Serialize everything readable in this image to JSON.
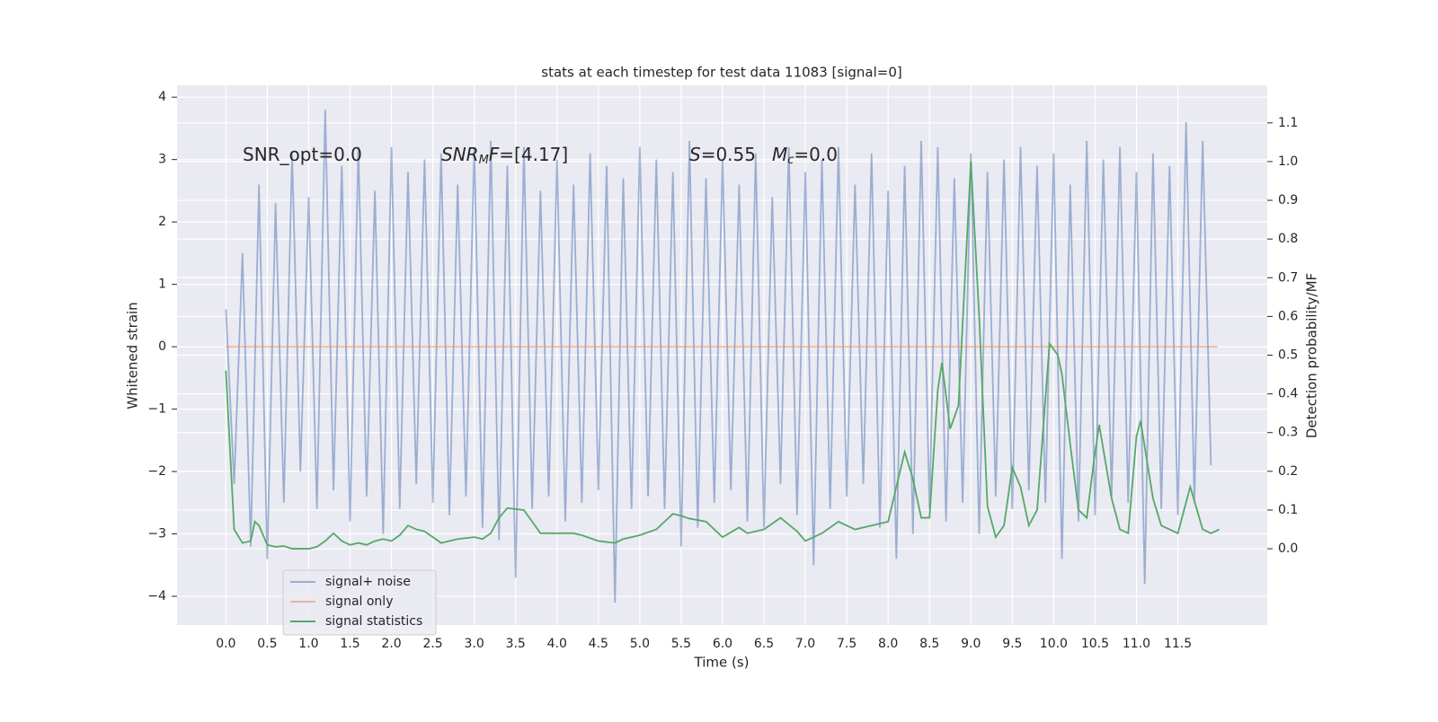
{
  "chart_data": {
    "type": "line",
    "title": "stats at each timestep for test data 11083 [signal=0]",
    "xlabel": "Time (s)",
    "ylabel": "Whitened strain",
    "y2label": "Detection probability/MF",
    "xlim": [
      -0.59,
      12.58
    ],
    "ylim": [
      -4.46,
      4.19
    ],
    "y2lim": [
      -0.197,
      1.197
    ],
    "xticks": [
      {
        "value": 0,
        "label": "0.0"
      },
      {
        "value": 0.5,
        "label": "0.5"
      },
      {
        "value": 1,
        "label": "1.0"
      },
      {
        "value": 1.5,
        "label": "1.5"
      },
      {
        "value": 2,
        "label": "2.0"
      },
      {
        "value": 2.5,
        "label": "2.5"
      },
      {
        "value": 3,
        "label": "3.0"
      },
      {
        "value": 3.5,
        "label": "3.5"
      },
      {
        "value": 4,
        "label": "4.0"
      },
      {
        "value": 4.5,
        "label": "4.5"
      },
      {
        "value": 5,
        "label": "5.0"
      },
      {
        "value": 5.5,
        "label": "5.5"
      },
      {
        "value": 6,
        "label": "6.0"
      },
      {
        "value": 6.5,
        "label": "6.5"
      },
      {
        "value": 7,
        "label": "7.0"
      },
      {
        "value": 7.5,
        "label": "7.5"
      },
      {
        "value": 8,
        "label": "8.0"
      },
      {
        "value": 8.5,
        "label": "8.5"
      },
      {
        "value": 9,
        "label": "9.0"
      },
      {
        "value": 9.5,
        "label": "9.5"
      },
      {
        "value": 10,
        "label": "10.0"
      },
      {
        "value": 10.5,
        "label": "10.5"
      },
      {
        "value": 11,
        "label": "11.0"
      },
      {
        "value": 11.5,
        "label": "11.5"
      }
    ],
    "yticks": [
      {
        "value": -4,
        "label": "−4"
      },
      {
        "value": -3,
        "label": "−3"
      },
      {
        "value": -2,
        "label": "−2"
      },
      {
        "value": -1,
        "label": "−1"
      },
      0,
      1,
      2,
      3,
      4
    ],
    "y2ticks": [
      {
        "value": 0,
        "label": "0.0"
      },
      {
        "value": 0.1,
        "label": "0.1"
      },
      {
        "value": 0.2,
        "label": "0.2"
      },
      {
        "value": 0.3,
        "label": "0.3"
      },
      {
        "value": 0.4,
        "label": "0.4"
      },
      {
        "value": 0.5,
        "label": "0.5"
      },
      {
        "value": 0.6,
        "label": "0.6"
      },
      {
        "value": 0.7,
        "label": "0.7"
      },
      {
        "value": 0.8,
        "label": "0.8"
      },
      {
        "value": 0.9,
        "label": "0.9"
      },
      {
        "value": 1,
        "label": "1.0"
      },
      {
        "value": 1.1,
        "label": "1.1"
      }
    ],
    "grid": true,
    "legend": "lower left",
    "annotations": [
      [
        {
          "text": "SNR_opt=0.0"
        }
      ],
      [
        {
          "text": "SNR",
          "style": "italic"
        },
        {
          "text": "M",
          "style": "sub"
        },
        {
          "text": "F",
          "style": "italic"
        },
        {
          "text": "=[4.17]"
        }
      ],
      [
        {
          "text": "S",
          "style": "italic"
        },
        {
          "text": "=0.55"
        }
      ],
      [
        {
          "text": "M",
          "style": "italic"
        },
        {
          "text": "c",
          "style": "sub"
        },
        {
          "text": "=0.0"
        }
      ]
    ],
    "series": [
      {
        "name": "signal+ noise",
        "color": "#4c72b0",
        "alpha": 0.5,
        "x": [
          0,
          0.1,
          0.2,
          0.3,
          0.4,
          0.5,
          0.6,
          0.7,
          0.8,
          0.9,
          1,
          1.1,
          1.2,
          1.3,
          1.4,
          1.5,
          1.6,
          1.7,
          1.8,
          1.9,
          2,
          2.1,
          2.2,
          2.3,
          2.4,
          2.5,
          2.6,
          2.7,
          2.8,
          2.9,
          3,
          3.1,
          3.2,
          3.3,
          3.4,
          3.5,
          3.6,
          3.7,
          3.8,
          3.9,
          4,
          4.1,
          4.2,
          4.3,
          4.4,
          4.5,
          4.6,
          4.7,
          4.8,
          4.9,
          5,
          5.1,
          5.2,
          5.3,
          5.4,
          5.5,
          5.6,
          5.7,
          5.8,
          5.9,
          6,
          6.1,
          6.2,
          6.3,
          6.4,
          6.5,
          6.6,
          6.7,
          6.8,
          6.9,
          7,
          7.1,
          7.2,
          7.3,
          7.4,
          7.5,
          7.6,
          7.7,
          7.8,
          7.9,
          8,
          8.1,
          8.2,
          8.3,
          8.4,
          8.5,
          8.6,
          8.7,
          8.8,
          8.9,
          9,
          9.1,
          9.2,
          9.3,
          9.4,
          9.5,
          9.6,
          9.7,
          9.8,
          9.9,
          10,
          10.1,
          10.2,
          10.3,
          10.4,
          10.5,
          10.6,
          10.7,
          10.8,
          10.9,
          11,
          11.1,
          11.2,
          11.3,
          11.4,
          11.5,
          11.6,
          11.7,
          11.8,
          11.9
        ],
        "values": [
          0.6,
          -2.2,
          1.5,
          -3.2,
          2.6,
          -3.4,
          2.3,
          -2.5,
          3.1,
          -2.0,
          2.4,
          -2.6,
          3.8,
          -2.3,
          2.9,
          -2.8,
          3.2,
          -2.4,
          2.5,
          -3.0,
          3.2,
          -2.6,
          2.8,
          -2.2,
          3.0,
          -2.5,
          3.1,
          -2.7,
          2.6,
          -2.4,
          3.2,
          -2.9,
          3.3,
          -3.1,
          2.9,
          -3.7,
          3.2,
          -2.6,
          2.5,
          -2.4,
          3.0,
          -2.8,
          2.6,
          -2.5,
          3.1,
          -2.3,
          2.9,
          -4.1,
          2.7,
          -2.6,
          3.2,
          -2.4,
          3.0,
          -2.6,
          2.8,
          -3.2,
          3.3,
          -2.9,
          2.7,
          -2.5,
          3.0,
          -2.3,
          2.6,
          -2.8,
          3.1,
          -2.9,
          2.4,
          -2.2,
          3.2,
          -2.7,
          2.8,
          -3.5,
          3.0,
          -2.6,
          3.2,
          -2.4,
          2.6,
          -2.2,
          3.1,
          -2.9,
          2.5,
          -3.4,
          2.9,
          -3.0,
          3.3,
          -2.6,
          3.2,
          -2.8,
          2.7,
          -2.5,
          3.1,
          -3.0,
          2.8,
          -2.4,
          3.0,
          -2.6,
          3.2,
          -2.3,
          2.9,
          -2.5,
          3.1,
          -3.4,
          2.6,
          -2.8,
          3.3,
          -2.7,
          3.0,
          -2.4,
          3.2,
          -2.5,
          2.8,
          -3.8,
          3.1,
          -2.6,
          2.9,
          -2.7,
          3.6,
          -2.5,
          3.3,
          -1.9
        ]
      },
      {
        "name": "signal only",
        "color": "#dd8452",
        "alpha": 0.5,
        "x": [
          0,
          11.98
        ],
        "values": [
          0,
          0
        ]
      },
      {
        "name": "signal statistics",
        "color": "#55a868",
        "axis": "y2",
        "x": [
          0,
          0.1,
          0.2,
          0.3,
          0.35,
          0.4,
          0.5,
          0.6,
          0.7,
          0.8,
          1,
          1.1,
          1.2,
          1.3,
          1.4,
          1.5,
          1.6,
          1.7,
          1.8,
          1.9,
          2,
          2.1,
          2.2,
          2.3,
          2.4,
          2.5,
          2.6,
          2.7,
          2.8,
          3,
          3.1,
          3.2,
          3.3,
          3.4,
          3.6,
          3.7,
          3.8,
          4,
          4.2,
          4.3,
          4.5,
          4.7,
          4.8,
          5,
          5.2,
          5.4,
          5.5,
          5.6,
          5.8,
          6,
          6.2,
          6.3,
          6.5,
          6.7,
          6.9,
          7,
          7.2,
          7.4,
          7.6,
          7.8,
          8,
          8.1,
          8.2,
          8.3,
          8.4,
          8.5,
          8.6,
          8.65,
          8.75,
          8.85,
          9,
          9.1,
          9.2,
          9.3,
          9.4,
          9.5,
          9.6,
          9.7,
          9.8,
          9.95,
          10.05,
          10.1,
          10.2,
          10.3,
          10.4,
          10.5,
          10.55,
          10.7,
          10.8,
          10.9,
          11,
          11.05,
          11.2,
          11.3,
          11.5,
          11.65,
          11.8,
          11.9,
          12
        ],
        "values": [
          0.46,
          0.05,
          0.015,
          0.02,
          0.07,
          0.06,
          0.01,
          0.005,
          0.007,
          0,
          0,
          0.005,
          0.02,
          0.04,
          0.02,
          0.01,
          0.015,
          0.01,
          0.02,
          0.025,
          0.02,
          0.035,
          0.06,
          0.05,
          0.045,
          0.03,
          0.015,
          0.02,
          0.025,
          0.03,
          0.025,
          0.04,
          0.08,
          0.105,
          0.1,
          0.07,
          0.04,
          0.04,
          0.04,
          0.035,
          0.02,
          0.015,
          0.025,
          0.035,
          0.05,
          0.09,
          0.085,
          0.078,
          0.07,
          0.03,
          0.055,
          0.04,
          0.05,
          0.08,
          0.045,
          0.02,
          0.04,
          0.07,
          0.05,
          0.06,
          0.07,
          0.16,
          0.25,
          0.18,
          0.08,
          0.08,
          0.41,
          0.48,
          0.31,
          0.37,
          1.0,
          0.6,
          0.11,
          0.03,
          0.06,
          0.21,
          0.16,
          0.06,
          0.1,
          0.53,
          0.5,
          0.45,
          0.27,
          0.1,
          0.08,
          0.25,
          0.32,
          0.13,
          0.05,
          0.04,
          0.29,
          0.33,
          0.13,
          0.06,
          0.04,
          0.16,
          0.05,
          0.04,
          0.05
        ]
      }
    ]
  }
}
